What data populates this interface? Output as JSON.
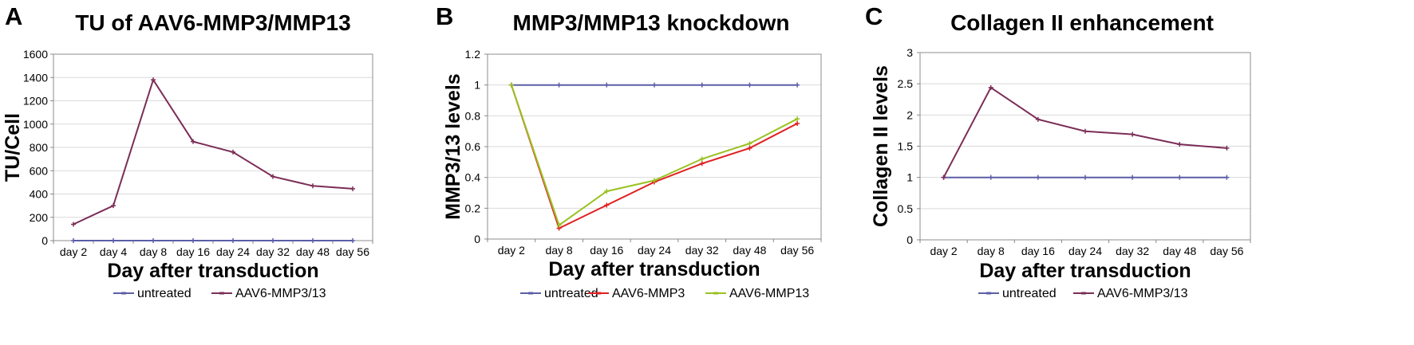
{
  "chart_data": [
    {
      "type": "line",
      "panel_label": "A",
      "title": "TU of AAV6-MMP3/MMP13",
      "xlabel": "Day after transduction",
      "ylabel": "TU/Cell",
      "categories": [
        "day 2",
        "day 4",
        "day 8",
        "day 16",
        "day 24",
        "day 32",
        "day 48",
        "day 56"
      ],
      "ylim": [
        0,
        1600
      ],
      "yticks": [
        0,
        200,
        400,
        600,
        800,
        1000,
        1200,
        1400,
        1600
      ],
      "ytick_labels": [
        "0",
        "200",
        "400",
        "600",
        "800",
        "1000",
        "1200",
        "1400",
        "1600"
      ],
      "grid": true,
      "legend_position": "bottom",
      "series": [
        {
          "name": "untreated",
          "color": "#5b5ea6",
          "values": [
            0,
            0,
            0,
            0,
            0,
            0,
            0,
            0
          ]
        },
        {
          "name": "AAV6-MMP3/13",
          "color": "#7b2d57",
          "values": [
            140,
            300,
            1380,
            850,
            760,
            550,
            470,
            445
          ]
        }
      ]
    },
    {
      "type": "line",
      "panel_label": "B",
      "title": "MMP3/MMP13 knockdown",
      "xlabel": "Day after transduction",
      "ylabel": "MMP3/13 levels",
      "categories": [
        "day 2",
        "day 8",
        "day 16",
        "day 24",
        "day 32",
        "day 48",
        "day 56"
      ],
      "ylim": [
        0,
        1.2
      ],
      "yticks": [
        0,
        0.2,
        0.4,
        0.6,
        0.8,
        1,
        1.2
      ],
      "ytick_labels": [
        "0",
        "0.2",
        "0.4",
        "0.6",
        "0.8",
        "1",
        "1.2"
      ],
      "grid": true,
      "legend_position": "bottom",
      "series": [
        {
          "name": "untreated",
          "color": "#5b5ea6",
          "values": [
            1,
            1,
            1,
            1,
            1,
            1,
            1
          ]
        },
        {
          "name": "AAV6-MMP3",
          "color": "#e02020",
          "values": [
            1,
            0.07,
            0.22,
            0.37,
            0.49,
            0.59,
            0.75
          ]
        },
        {
          "name": "AAV6-MMP13",
          "color": "#9ac222",
          "values": [
            1,
            0.09,
            0.31,
            0.38,
            0.52,
            0.62,
            0.78
          ]
        }
      ]
    },
    {
      "type": "line",
      "panel_label": "C",
      "title": "Collagen II enhancement",
      "xlabel": "Day after transduction",
      "ylabel": "Collagen II levels",
      "categories": [
        "day 2",
        "day 8",
        "day 16",
        "day 24",
        "day 32",
        "day 48",
        "day 56"
      ],
      "ylim": [
        0,
        3
      ],
      "yticks": [
        0,
        0.5,
        1,
        1.5,
        2,
        2.5,
        3
      ],
      "ytick_labels": [
        "0",
        "0.5",
        "1",
        "1.5",
        "2",
        "2.5",
        "3"
      ],
      "grid": true,
      "legend_position": "bottom",
      "series": [
        {
          "name": "untreated",
          "color": "#5b5ea6",
          "values": [
            1,
            1,
            1,
            1,
            1,
            1,
            1
          ]
        },
        {
          "name": "AAV6-MMP3/13",
          "color": "#7b2d57",
          "values": [
            1,
            2.44,
            1.93,
            1.74,
            1.69,
            1.53,
            1.47
          ]
        }
      ]
    }
  ]
}
